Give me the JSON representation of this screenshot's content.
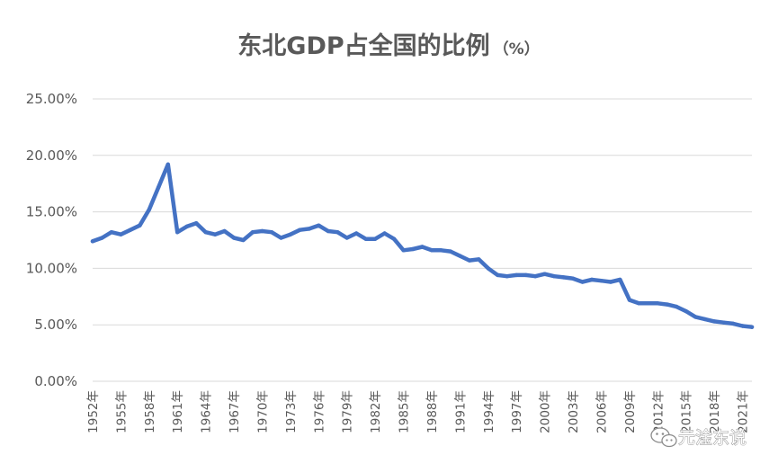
{
  "chart_data": {
    "type": "line",
    "title": "东北GDP占全国的比例",
    "title_unit": "（%）",
    "xlabel": "",
    "ylabel": "",
    "ylim": [
      0,
      0.25
    ],
    "yticks": [
      "0.00%",
      "5.00%",
      "10.00%",
      "15.00%",
      "20.00%",
      "25.00%"
    ],
    "grid": true,
    "legend": "none",
    "line_color": "#4472c4",
    "x_labels": [
      "1952年",
      "1955年",
      "1958年",
      "1961年",
      "1964年",
      "1967年",
      "1970年",
      "1973年",
      "1976年",
      "1979年",
      "1982年",
      "1985年",
      "1988年",
      "1991年",
      "1994年",
      "1997年",
      "2000年",
      "2003年",
      "2006年",
      "2009年",
      "2012年",
      "2015年",
      "2018年",
      "2021年"
    ],
    "x": [
      1952,
      1953,
      1954,
      1955,
      1956,
      1957,
      1958,
      1959,
      1960,
      1961,
      1962,
      1963,
      1964,
      1965,
      1966,
      1967,
      1968,
      1969,
      1970,
      1971,
      1972,
      1973,
      1974,
      1975,
      1976,
      1977,
      1978,
      1979,
      1980,
      1981,
      1982,
      1983,
      1984,
      1985,
      1986,
      1987,
      1988,
      1989,
      1990,
      1991,
      1992,
      1993,
      1994,
      1995,
      1996,
      1997,
      1998,
      1999,
      2000,
      2001,
      2002,
      2003,
      2004,
      2005,
      2006,
      2007,
      2008,
      2009,
      2010,
      2011,
      2012,
      2013,
      2014,
      2015,
      2016,
      2017,
      2018,
      2019,
      2020,
      2021,
      2022
    ],
    "series": [
      {
        "values": [
          0.124,
          0.127,
          0.132,
          0.13,
          0.134,
          0.138,
          0.152,
          0.172,
          0.192,
          0.132,
          0.137,
          0.14,
          0.132,
          0.13,
          0.133,
          0.127,
          0.125,
          0.132,
          0.133,
          0.132,
          0.127,
          0.13,
          0.134,
          0.135,
          0.138,
          0.133,
          0.132,
          0.127,
          0.131,
          0.126,
          0.126,
          0.131,
          0.126,
          0.116,
          0.117,
          0.119,
          0.116,
          0.116,
          0.115,
          0.111,
          0.107,
          0.108,
          0.1,
          0.094,
          0.093,
          0.094,
          0.094,
          0.093,
          0.095,
          0.093,
          0.092,
          0.091,
          0.088,
          0.09,
          0.089,
          0.088,
          0.09,
          0.072,
          0.069,
          0.069,
          0.069,
          0.068,
          0.066,
          0.062,
          0.057,
          0.055,
          0.053,
          0.052,
          0.051,
          0.049,
          0.048
        ]
      }
    ]
  },
  "watermark": {
    "text": "元淦东说",
    "icon": "wechat-icon"
  }
}
